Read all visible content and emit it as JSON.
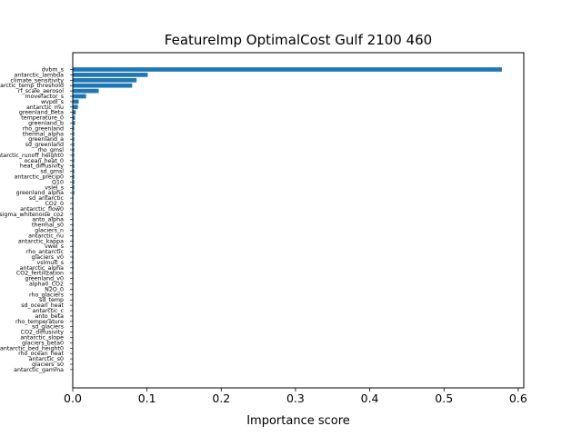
{
  "chart_data": {
    "type": "bar",
    "orientation": "horizontal",
    "title": "FeatureImp OptimalCost Gulf 2100 460",
    "xlabel": "Importance score",
    "ylabel": "",
    "xlim": [
      0,
      0.6075
    ],
    "xticks": [
      0,
      0.1,
      0.2,
      0.3,
      0.4,
      0.5,
      0.6
    ],
    "xtick_labels": [
      "0.0",
      "0.1",
      "0.2",
      "0.3",
      "0.4",
      "0.5",
      "0.6"
    ],
    "grid": false,
    "bar_color": "#1f77b4",
    "categories": [
      "dvbm_s",
      "antarctic_lambda",
      "climate_sensitivity",
      "antarctic_temp_threshold",
      "rf_scale_aerosol",
      "movefactor_s",
      "wvpdl_s",
      "antarctic_mu",
      "greenland_beta",
      "temperature_0",
      "greenland_b",
      "rho_greenland",
      "thermal_alpha",
      "greenland_a",
      "sd_greenland",
      "rho_gmsl",
      "antarctic_runoff_height0",
      "ocean_heat_0",
      "heat_diffusivity",
      "sd_gmsl",
      "antarctic_precip0",
      "Q10",
      "vslel_s",
      "greenland_alpha",
      "sd_antarctic",
      "CO2_0",
      "antarctic_flow0",
      "sigma_whitenoise_co2",
      "anto_alpha",
      "thermal_s0",
      "glaciers_n",
      "antarctic_nu",
      "antarctic_kappa",
      "vwel_s",
      "rho_antarctic",
      "glaciers_v0",
      "vslmult_s",
      "antarctic_alpha",
      "CO2_fertilization",
      "greenland_v0",
      "alpha0_CO2",
      "N2O_0",
      "rho_glaciers",
      "sd_temp",
      "sd_ocean_heat",
      "antarctic_c",
      "anto_beta",
      "rho_temperature",
      "sd_glaciers",
      "CO2_diffusivity",
      "antarctic_slope",
      "glaciers_beta0",
      "antarctic_bed_height0",
      "rho_ocean_heat",
      "antarctic_s0",
      "glaciers_s0",
      "antarctic_gamma"
    ],
    "values": [
      0.578,
      0.101,
      0.086,
      0.08,
      0.035,
      0.018,
      0.008,
      0.007,
      0.004,
      0.003,
      0.003,
      0.002,
      0.002,
      0.002,
      0.002,
      0.002,
      0.002,
      0.002,
      0.002,
      0.002,
      0.002,
      0.002,
      0.002,
      0.002,
      0.001,
      0.001,
      0.001,
      0.001,
      0.001,
      0.001,
      0.001,
      0.001,
      0.001,
      0.001,
      0.001,
      0.001,
      0.001,
      0.001,
      0.0008,
      0.0008,
      0.0008,
      0.0007,
      0.0007,
      0.0007,
      0.0006,
      0.0006,
      0.0006,
      0.0005,
      0.0005,
      0.0005,
      0.0004,
      0.0004,
      0.0004,
      0.0003,
      0.0003,
      0.0002,
      0.0002
    ]
  }
}
